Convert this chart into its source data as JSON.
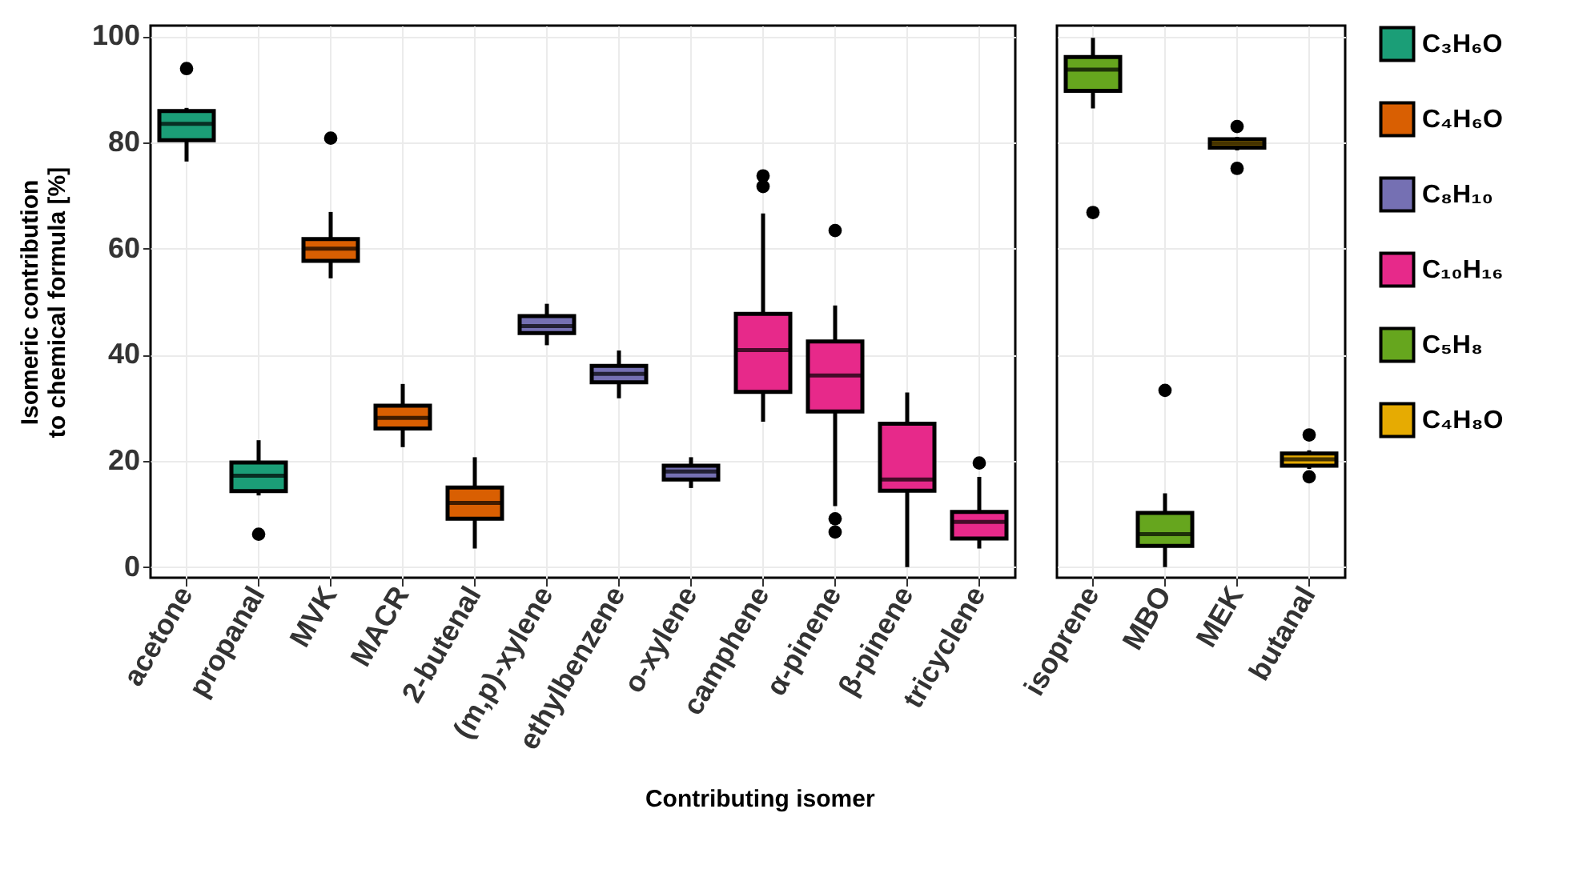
{
  "chart_data": [
    {
      "type": "box",
      "xlabel": "Contributing isomer",
      "ylabel": "Isomeric contribution to chemical formula [%]",
      "categories": [
        "acetone",
        "propanal",
        "MVK",
        "MACR",
        "2-butenal",
        "(m,p)-xylene",
        "ethylbenzene",
        "o-xylene",
        "camphene",
        "α-pinene",
        "β-pinene",
        "tricyclene"
      ],
      "ylim": [
        -2,
        102
      ],
      "yticks": [
        0,
        20,
        40,
        60,
        80,
        100
      ],
      "grid": true,
      "legend": "right",
      "series": [
        {
          "name": "C₃H₆O",
          "color": "#1b9e77",
          "boxes": [
            {
              "low": 76.4,
              "q1": 80.4,
              "median": 83.5,
              "q3": 85.9,
              "high": 86.5,
              "outliers": [
                93.9
              ]
            },
            {
              "low": 13.5,
              "q1": 14.3,
              "median": 17.2,
              "q3": 19.7,
              "high": 23.9,
              "outliers": [
                6.2
              ]
            },
            null,
            null,
            null,
            null,
            null,
            null,
            null,
            null,
            null,
            null
          ]
        },
        {
          "name": "C₄H₆O",
          "color": "#d95f02",
          "boxes": [
            null,
            null,
            {
              "low": 54.4,
              "q1": 57.7,
              "median": 60,
              "q3": 61.8,
              "high": 66.9,
              "outliers": [
                80.8
              ]
            },
            {
              "low": 22.6,
              "q1": 26.1,
              "median": 28.1,
              "q3": 30.4,
              "high": 34.5
            },
            {
              "low": 3.5,
              "q1": 9.1,
              "median": 12.1,
              "q3": 15,
              "high": 20.7
            },
            null,
            null,
            null,
            null,
            null,
            null,
            null
          ]
        },
        {
          "name": "C₈H₁₀",
          "color": "#7570b3",
          "boxes": [
            null,
            null,
            null,
            null,
            null,
            {
              "low": 41.8,
              "q1": 44.1,
              "median": 45.4,
              "q3": 47.3,
              "high": 49.6
            },
            {
              "low": 31.8,
              "q1": 34.8,
              "median": 36.4,
              "q3": 37.9,
              "high": 40.8
            },
            {
              "low": 14.9,
              "q1": 16.5,
              "median": 18,
              "q3": 19.1,
              "high": 20.7
            },
            null,
            null,
            null,
            null
          ]
        },
        {
          "name": "C₁₀H₁₆",
          "color": "#e7298a",
          "boxes": [
            null,
            null,
            null,
            null,
            null,
            null,
            null,
            null,
            {
              "low": 27.4,
              "q1": 33,
              "median": 40.9,
              "q3": 47.7,
              "high": 66.6,
              "outliers": [
                71.7,
                73.7
              ]
            },
            {
              "low": 11.5,
              "q1": 29.3,
              "median": 36.1,
              "q3": 42.5,
              "high": 49.3,
              "outliers": [
                63.4,
                9.1,
                6.6
              ]
            },
            {
              "low": 0,
              "q1": 14.4,
              "median": 16.5,
              "q3": 27,
              "high": 32.9
            },
            {
              "low": 3.5,
              "q1": 5.4,
              "median": 8.5,
              "q3": 10.4,
              "high": 17,
              "outliers": [
                19.6
              ]
            }
          ]
        }
      ]
    },
    {
      "type": "box",
      "categories": [
        "isoprene",
        "MBO",
        "MEK",
        "butanal"
      ],
      "ylim": [
        -2,
        102
      ],
      "yticks": [
        0,
        20,
        40,
        60,
        80,
        100
      ],
      "grid": true,
      "legend": "right",
      "tick_labels": "x",
      "series": [
        {
          "name": "C₅H₈",
          "color": "#66a61e",
          "boxes": [
            {
              "low": 86.4,
              "q1": 89.7,
              "median": 93.7,
              "q3": 96.1,
              "high": 99.7,
              "outliers": [
                66.8
              ]
            },
            {
              "low": 0,
              "q1": 4,
              "median": 6.2,
              "q3": 10.2,
              "high": 13.9,
              "outliers": [
                33.3
              ]
            },
            null,
            null
          ]
        },
        {
          "name": "C₄H₈O",
          "color": "#e6ab02",
          "boxes": [
            null,
            null,
            {
              "low": 78.5,
              "q1": 79,
              "median": 79.8,
              "q3": 80.6,
              "high": 81,
              "outliers": [
                83,
                75.1
              ]
            },
            {
              "low": 18.5,
              "q1": 19.1,
              "median": 20.3,
              "q3": 21.4,
              "high": 22,
              "outliers": [
                24.9,
                17
              ]
            }
          ]
        }
      ]
    }
  ]
}
